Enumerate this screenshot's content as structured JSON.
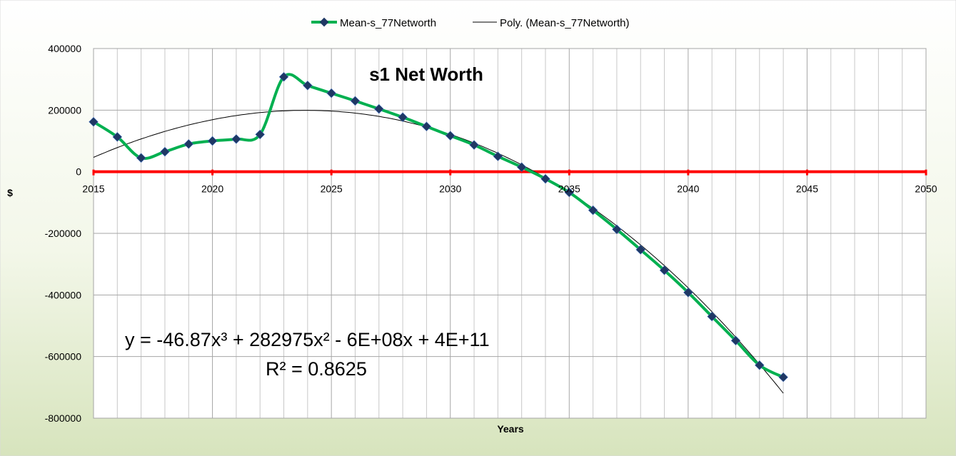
{
  "chart_data": {
    "type": "line",
    "title": "s1 Net Worth",
    "xlabel": "Years",
    "ylabel": "$",
    "xlim": [
      2015,
      2050
    ],
    "ylim": [
      -800000,
      400000
    ],
    "xticks": [
      2015,
      2020,
      2025,
      2030,
      2035,
      2040,
      2045,
      2050
    ],
    "yticks": [
      400000,
      200000,
      0,
      -200000,
      -400000,
      -600000,
      -800000
    ],
    "grid": true,
    "legend_position": "top",
    "series": [
      {
        "name": "Mean-s_77Networth",
        "color": "#00b050",
        "marker_color": "#1f3864",
        "x": [
          2015,
          2016,
          2017,
          2018,
          2019,
          2020,
          2021,
          2022,
          2023,
          2024,
          2025,
          2026,
          2027,
          2028,
          2029,
          2030,
          2031,
          2032,
          2033,
          2034,
          2035,
          2036,
          2037,
          2038,
          2039,
          2040,
          2041,
          2042,
          2043,
          2044
        ],
        "values": [
          162000,
          113000,
          45000,
          65000,
          90000,
          100000,
          106000,
          121000,
          308000,
          280000,
          255000,
          230000,
          204000,
          177000,
          147000,
          117000,
          87000,
          50000,
          15000,
          -23000,
          -67000,
          -125000,
          -187000,
          -253000,
          -320000,
          -392000,
          -470000,
          -548000,
          -628000,
          -667000
        ]
      },
      {
        "name": "Poly. (Mean-s_77Networth)",
        "color": "#000000",
        "trendline": "poly3"
      }
    ],
    "zero_line_color": "#ff0000",
    "trendline_equation": "y = -46.87x³ + 282975x² - 6E+08x + 4E+11",
    "trendline_r2": "R² = 0.8625"
  }
}
